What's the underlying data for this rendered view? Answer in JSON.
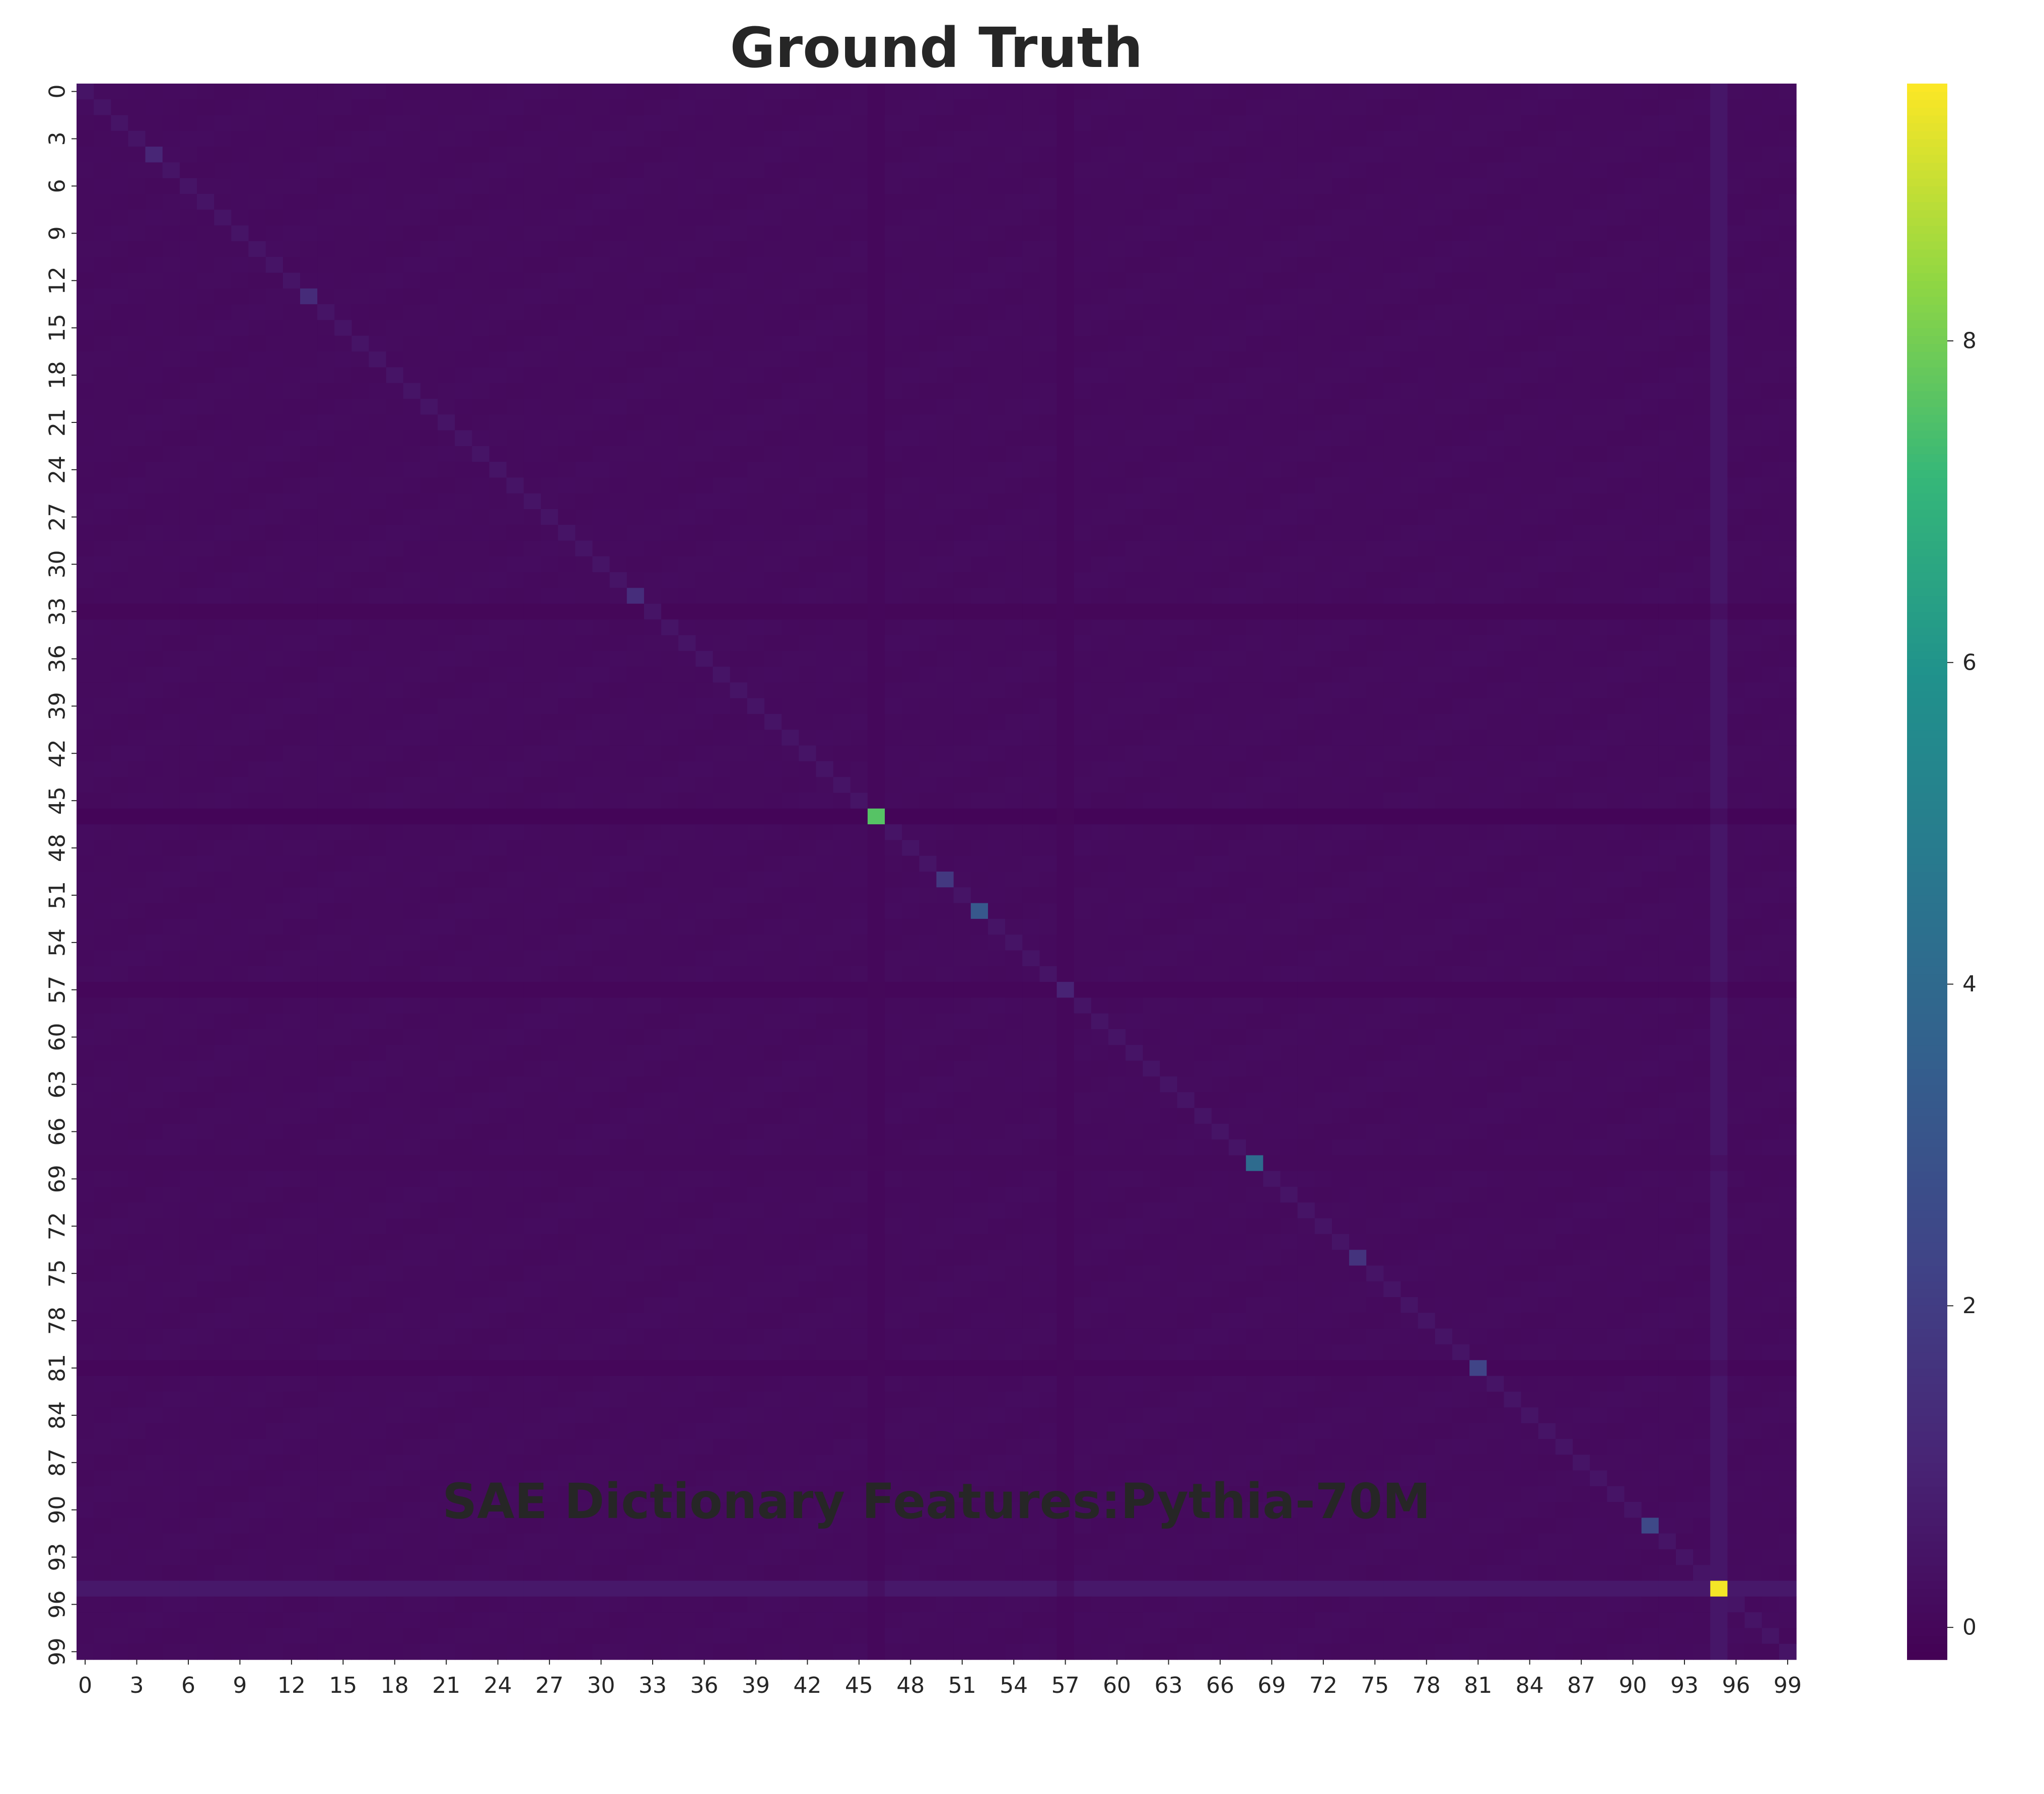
{
  "chart_data": {
    "type": "heatmap",
    "title": "Ground Truth",
    "xlabel": "SAE Dictionary Features:Pythia-70M",
    "ylabel": "",
    "rows": 100,
    "cols": 100,
    "x_tick_labels": [
      "0",
      "3",
      "6",
      "9",
      "12",
      "15",
      "18",
      "21",
      "24",
      "27",
      "30",
      "33",
      "36",
      "39",
      "42",
      "45",
      "48",
      "51",
      "54",
      "57",
      "60",
      "63",
      "66",
      "69",
      "72",
      "75",
      "78",
      "81",
      "84",
      "87",
      "90",
      "93",
      "96",
      "99"
    ],
    "y_tick_labels": [
      "0",
      "3",
      "6",
      "9",
      "12",
      "15",
      "18",
      "21",
      "24",
      "27",
      "30",
      "33",
      "36",
      "39",
      "42",
      "45",
      "48",
      "51",
      "54",
      "57",
      "60",
      "63",
      "66",
      "69",
      "72",
      "75",
      "78",
      "81",
      "84",
      "87",
      "90",
      "93",
      "96",
      "99"
    ],
    "colormap": "viridis",
    "vmin": -0.2,
    "vmax": 9.6,
    "colorbar_ticks": [
      0,
      2,
      4,
      6,
      8
    ],
    "background_value": 0.15,
    "diagonal_default": 0.45,
    "highlighted_diagonal": [
      {
        "index": 4,
        "value": 1.1
      },
      {
        "index": 13,
        "value": 1.3
      },
      {
        "index": 32,
        "value": 1.4
      },
      {
        "index": 46,
        "value": 7.6
      },
      {
        "index": 50,
        "value": 1.8
      },
      {
        "index": 52,
        "value": 3.2
      },
      {
        "index": 57,
        "value": 1.0
      },
      {
        "index": 68,
        "value": 4.1
      },
      {
        "index": 74,
        "value": 1.6
      },
      {
        "index": 81,
        "value": 2.3
      },
      {
        "index": 91,
        "value": 2.5
      },
      {
        "index": 95,
        "value": 9.5
      }
    ],
    "row_band_values": [
      {
        "index": 46,
        "value": -0.05
      },
      {
        "index": 33,
        "value": 0.0
      },
      {
        "index": 57,
        "value": 0.02
      },
      {
        "index": 81,
        "value": 0.02
      },
      {
        "index": 95,
        "value": 0.6
      },
      {
        "index": 68,
        "value": 0.1
      }
    ],
    "col_band_values": [
      {
        "index": 95,
        "value": 0.55
      },
      {
        "index": 46,
        "value": 0.05
      },
      {
        "index": 57,
        "value": 0.05
      }
    ]
  }
}
